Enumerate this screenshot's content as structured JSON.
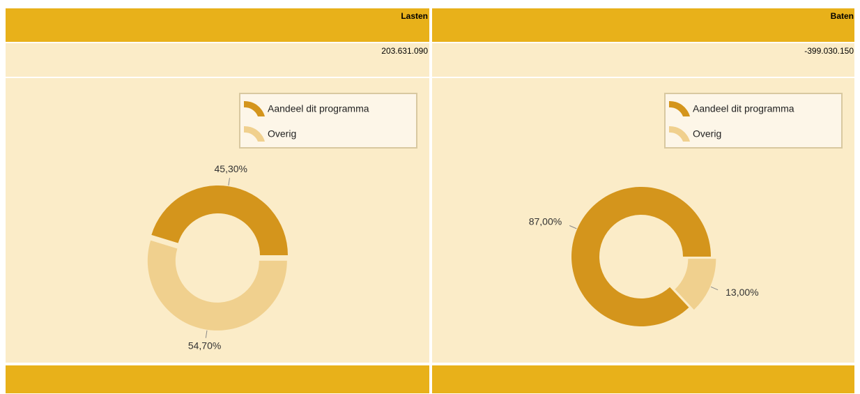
{
  "table": {
    "headers": [
      "Lasten",
      "Baten"
    ],
    "values": [
      "203.631.090",
      "-399.030.150"
    ]
  },
  "chart_data": [
    {
      "type": "donut",
      "categories": [
        "Aandeel dit programma",
        "Overig"
      ],
      "values": [
        45.3,
        54.7
      ],
      "value_labels": [
        "45,30%",
        "54,70%"
      ],
      "colors": [
        "#d4951c",
        "#f0d08e"
      ]
    },
    {
      "type": "donut",
      "categories": [
        "Aandeel dit programma",
        "Overig"
      ],
      "values": [
        87,
        13
      ],
      "value_labels": [
        "87,00%",
        "13,00%"
      ],
      "colors": [
        "#d4951c",
        "#f0d08e"
      ]
    }
  ]
}
